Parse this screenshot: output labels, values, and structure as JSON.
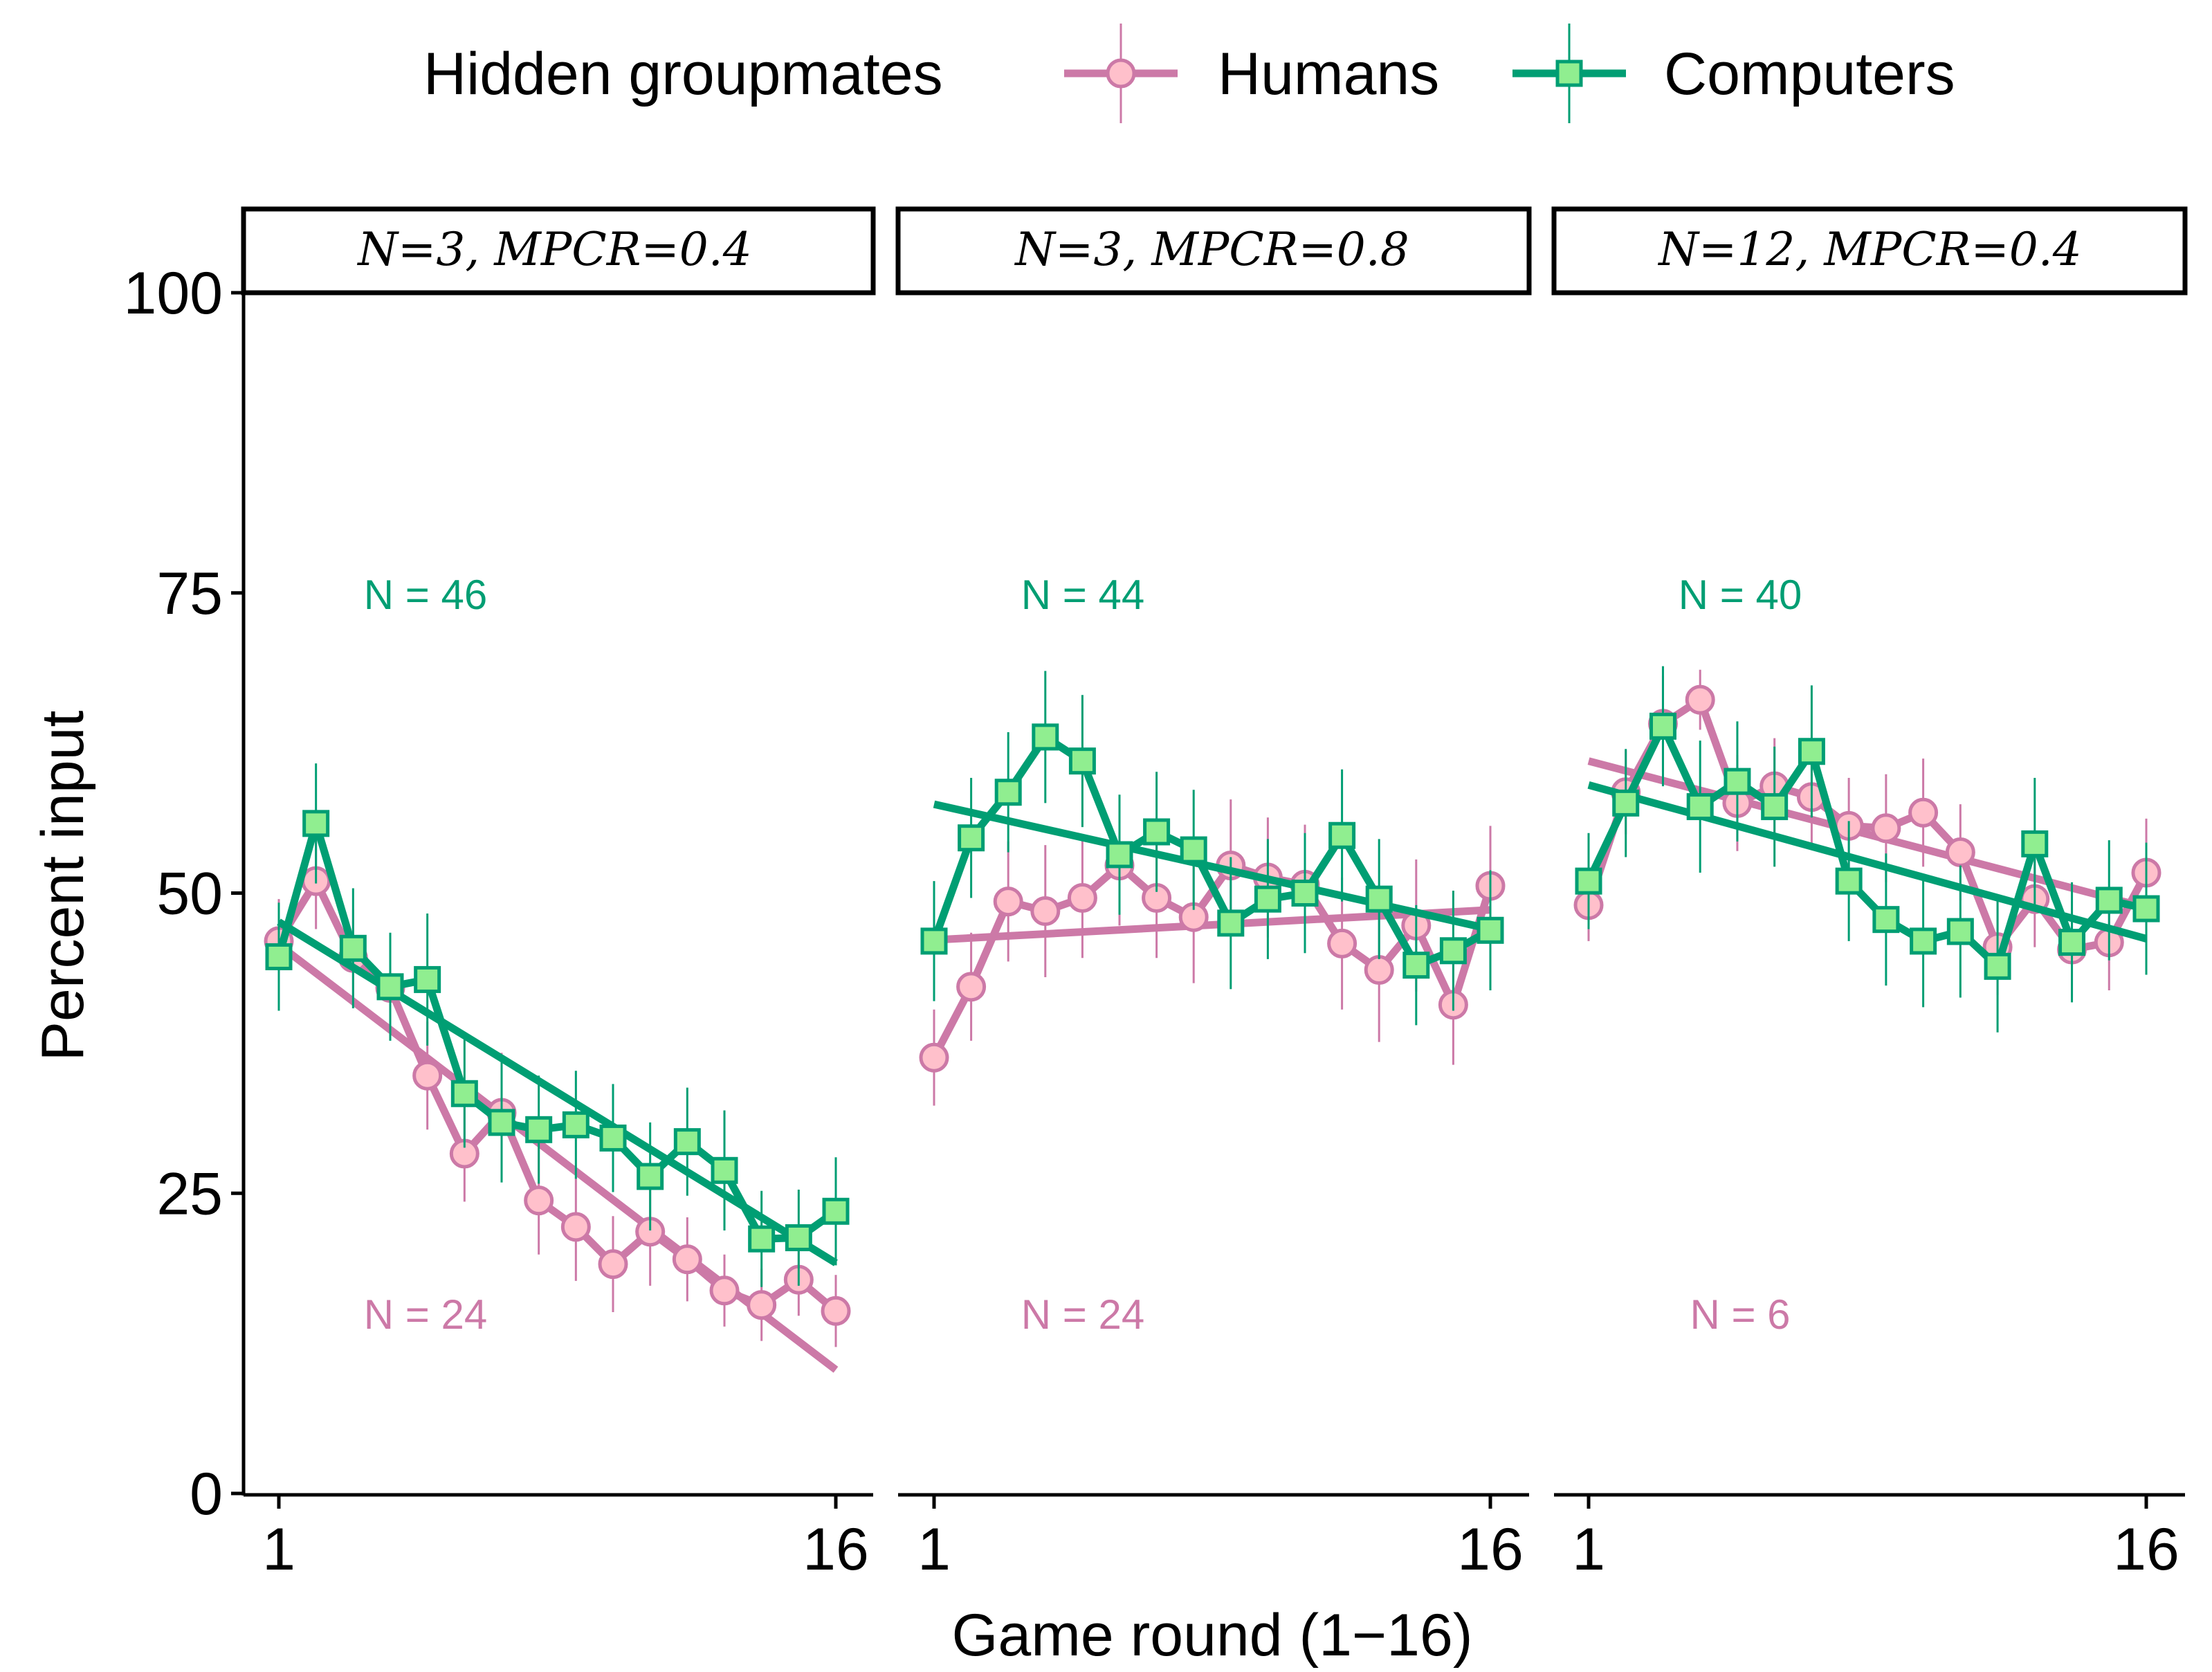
{
  "chart_data": {
    "type": "line",
    "xlabel": "Game round (1−16)",
    "ylabel": "Percent input",
    "ylim": [
      0,
      100
    ],
    "yticks": [
      0,
      25,
      50,
      75,
      100
    ],
    "xlim": [
      1,
      16
    ],
    "xtick_labels": [
      "1",
      "16"
    ],
    "legend": {
      "title": "Hidden groupmates",
      "position": "top",
      "entries": [
        {
          "name": "Humans",
          "color": "#CC79A7",
          "fill": "#FFC0CB",
          "marker": "circle"
        },
        {
          "name": "Computers",
          "color": "#009E73",
          "fill": "#90EE90",
          "marker": "square"
        }
      ]
    },
    "panels": [
      {
        "strip": "N=3, MPCR=0.4",
        "n_computers": "N = 46",
        "n_humans": "N = 24",
        "series": [
          {
            "name": "Humans",
            "values": [
              46.0,
              51.0,
              44.6,
              42.1,
              34.8,
              28.3,
              31.7,
              24.4,
              22.2,
              19.1,
              21.8,
              19.5,
              16.9,
              15.7,
              17.8,
              15.2
            ],
            "error": [
              3.5,
              4,
              4,
              4,
              4.5,
              4,
              5,
              4.5,
              4.5,
              4,
              4.5,
              3.5,
              3,
              3,
              3,
              3
            ],
            "trend": [
              45.7,
              10.3
            ]
          },
          {
            "name": "Computers",
            "values": [
              44.7,
              55.8,
              45.4,
              42.2,
              42.8,
              33.3,
              30.9,
              30.3,
              30.7,
              29.6,
              26.4,
              29.3,
              26.9,
              21.2,
              21.3,
              23.5
            ],
            "error": [
              4.5,
              5,
              5,
              4.5,
              5.5,
              4.5,
              5,
              4.5,
              4.5,
              4.5,
              4.5,
              4.5,
              5,
              4,
              4,
              4.5
            ],
            "trend": [
              47.6,
              19.2
            ]
          }
        ]
      },
      {
        "strip": "N=3, MPCR=0.8",
        "n_computers": "N = 44",
        "n_humans": "N = 24",
        "series": [
          {
            "name": "Humans",
            "values": [
              36.3,
              42.2,
              49.3,
              48.5,
              49.6,
              52.3,
              49.6,
              48.0,
              52.3,
              51.3,
              50.7,
              45.8,
              43.6,
              47.3,
              40.7,
              50.6
            ],
            "error": [
              4,
              4.5,
              5,
              5.5,
              5,
              5,
              5,
              5.5,
              5.5,
              5,
              5,
              5.5,
              6,
              5.5,
              5,
              5
            ],
            "trend": [
              46.1,
              48.6
            ]
          },
          {
            "name": "Computers",
            "values": [
              46.0,
              54.6,
              58.4,
              63.0,
              61.0,
              53.2,
              55.1,
              53.6,
              47.5,
              49.5,
              50.0,
              54.8,
              49.5,
              44.0,
              45.2,
              46.9
            ],
            "error": [
              5,
              5,
              5,
              5.5,
              5.5,
              5,
              5,
              5,
              5.5,
              5,
              5,
              5.5,
              5,
              5,
              5,
              5
            ],
            "trend": [
              57.4,
              47.0
            ]
          }
        ]
      },
      {
        "strip": "N=12, MPCR=0.4",
        "n_computers": "N = 40",
        "n_humans": "N = 6",
        "series": [
          {
            "name": "Humans",
            "values": [
              49.0,
              58.4,
              64.1,
              66.1,
              57.5,
              58.9,
              58.0,
              55.6,
              55.4,
              56.7,
              53.4,
              45.5,
              49.5,
              45.3,
              45.9,
              51.7
            ],
            "error": [
              3,
              3.5,
              4,
              2.5,
              4,
              4,
              4,
              4,
              4.5,
              4.5,
              4,
              4,
              4,
              4,
              4,
              4.5
            ],
            "trend": [
              61.0,
              48.8
            ]
          },
          {
            "name": "Computers",
            "values": [
              51.0,
              57.5,
              63.9,
              57.2,
              59.3,
              57.2,
              61.8,
              51.0,
              47.8,
              46.0,
              46.8,
              43.9,
              54.1,
              45.9,
              49.4,
              48.7
            ],
            "error": [
              4,
              4.5,
              5,
              5.5,
              5,
              5,
              5.5,
              5,
              5.5,
              5.5,
              5.5,
              5.5,
              5.5,
              5,
              5,
              5.5
            ],
            "trend": [
              59.0,
              46.2
            ]
          }
        ]
      }
    ]
  }
}
